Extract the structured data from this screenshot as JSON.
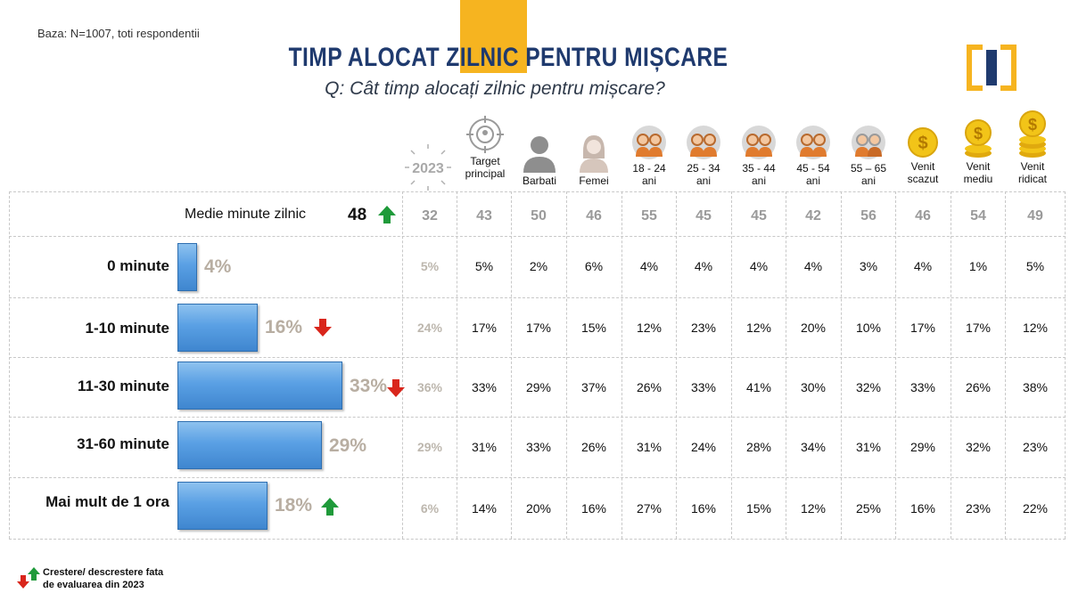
{
  "base_note": "Baza: N=1007, toti respondentii",
  "title": "TIMP ALOCAT ZILNIC PENTRU MIȘCARE",
  "subtitle": "Q: Cât timp alocați zilnic pentru mișcare?",
  "year_badge": "2023",
  "mean_label": "Medie minute zilnic",
  "mean_total": "48",
  "legend_text_1": "Crestere/ descrestere fata",
  "legend_text_2": "de evaluarea din 2023",
  "colors": {
    "accent": "#f6b420",
    "title": "#1f3a6e",
    "bar": "#5aa0e4",
    "up": "#1f9a3a",
    "down": "#d9261c"
  },
  "columns": [
    {
      "key": "y2023",
      "label_1": "",
      "label_2": "",
      "icon": "year-badge-icon"
    },
    {
      "key": "target",
      "label_1": "Target",
      "label_2": "principal",
      "icon": "target-icon"
    },
    {
      "key": "barbati",
      "label_1": "Barbati",
      "label_2": "",
      "icon": "man-icon"
    },
    {
      "key": "femei",
      "label_1": "Femei",
      "label_2": "",
      "icon": "woman-icon"
    },
    {
      "key": "a18_24",
      "label_1": "18 - 24",
      "label_2": "ani",
      "icon": "couple-icon"
    },
    {
      "key": "a25_34",
      "label_1": "25 - 34",
      "label_2": "ani",
      "icon": "couple-icon"
    },
    {
      "key": "a35_44",
      "label_1": "35 - 44",
      "label_2": "ani",
      "icon": "couple-icon"
    },
    {
      "key": "a45_54",
      "label_1": "45 - 54",
      "label_2": "ani",
      "icon": "couple-icon"
    },
    {
      "key": "a55_65",
      "label_1": "55 – 65",
      "label_2": "ani",
      "icon": "elderly-couple-icon"
    },
    {
      "key": "venit_scazut",
      "label_1": "Venit",
      "label_2": "scazut",
      "icon": "coin-small-icon"
    },
    {
      "key": "venit_mediu",
      "label_1": "Venit",
      "label_2": "mediu",
      "icon": "coin-stack-medium-icon"
    },
    {
      "key": "venit_ridicat",
      "label_1": "Venit",
      "label_2": "ridicat",
      "icon": "coin-stack-large-icon"
    }
  ],
  "mean_row": [
    "32",
    "43",
    "50",
    "46",
    "55",
    "45",
    "45",
    "42",
    "56",
    "46",
    "54",
    "49"
  ],
  "rows": [
    {
      "label": "0 minute",
      "value_text": "4%",
      "cells": [
        "5%",
        "5%",
        "2%",
        "6%",
        "4%",
        "4%",
        "4%",
        "4%",
        "3%",
        "4%",
        "1%",
        "5%"
      ]
    },
    {
      "label": "1-10 minute",
      "value_text": "16%",
      "cells": [
        "24%",
        "17%",
        "17%",
        "15%",
        "12%",
        "23%",
        "12%",
        "20%",
        "10%",
        "17%",
        "17%",
        "12%"
      ]
    },
    {
      "label": "11-30 minute",
      "value_text": "33%",
      "cells": [
        "36%",
        "33%",
        "29%",
        "37%",
        "26%",
        "33%",
        "41%",
        "30%",
        "32%",
        "33%",
        "26%",
        "38%"
      ]
    },
    {
      "label": "31-60 minute",
      "value_text": "29%",
      "cells": [
        "29%",
        "31%",
        "33%",
        "26%",
        "31%",
        "24%",
        "28%",
        "34%",
        "31%",
        "29%",
        "32%",
        "23%"
      ]
    },
    {
      "label": "Mai mult de 1 ora",
      "value_text": "18%",
      "cells": [
        "6%",
        "14%",
        "20%",
        "16%",
        "27%",
        "16%",
        "15%",
        "12%",
        "25%",
        "16%",
        "23%",
        "22%"
      ]
    }
  ],
  "chart_data": {
    "type": "bar",
    "orientation": "horizontal",
    "categories": [
      "0 minute",
      "1-10 minute",
      "11-30 minute",
      "31-60 minute",
      "Mai mult de 1 ora"
    ],
    "values": [
      4,
      16,
      33,
      29,
      18
    ],
    "unit": "%",
    "change_vs_2023": [
      "none",
      "down",
      "down",
      "none",
      "up"
    ],
    "mean": {
      "label": "Medie minute zilnic",
      "value": 48,
      "change_vs_2023": "up"
    },
    "title": "TIMP ALOCAT ZILNIC PENTRU MIȘCARE",
    "subtitle": "Q: Cât timp alocați zilnic pentru mișcare?",
    "grid": true
  }
}
